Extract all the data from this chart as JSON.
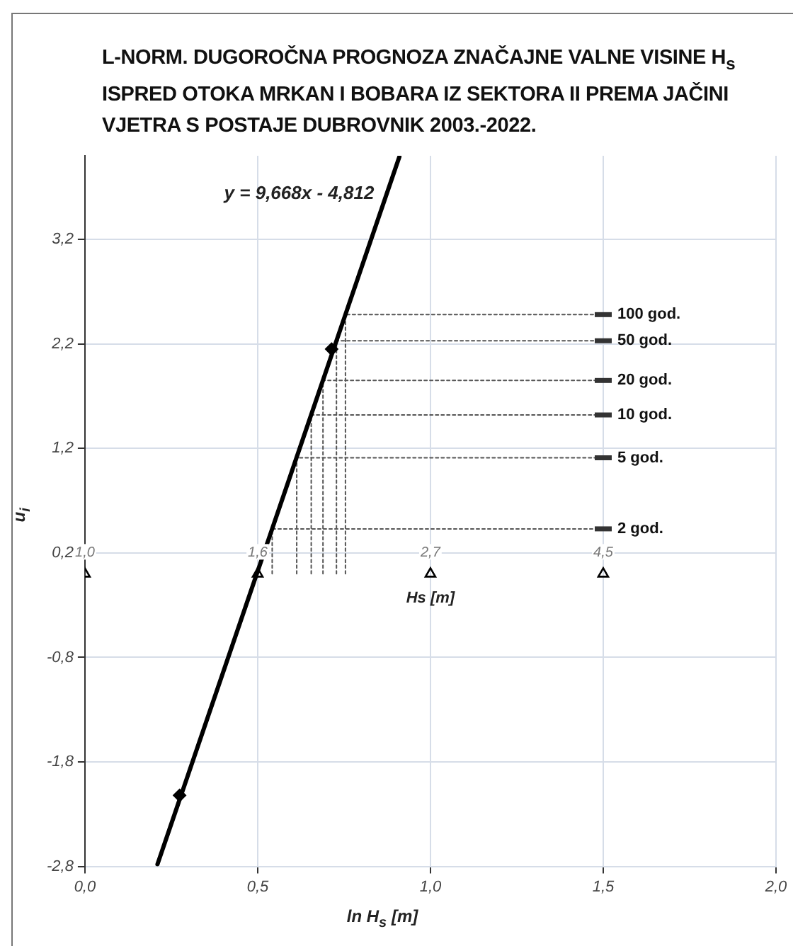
{
  "chart_data": {
    "type": "scatter",
    "title": "L-NORM. DUGOROČNA PROGNOZA ZNAČAJNE VALNE VISINE H$_{s}$ ISPRED OTOKA MRKAN I BOBARA IZ SEKTORA II  PREMA JAČINI VJETRA S POSTAJE DUBROVNIK  2003.-2022.",
    "xlabel": "ln H$_{s}$ [m]",
    "ylabel": "u$_{i}$",
    "x2label": "Hs [m]",
    "xlim": [
      0,
      2.0
    ],
    "ylim": [
      -2.8,
      4.0
    ],
    "x2lim": [
      1.0,
      7.389
    ],
    "log": "x2",
    "xticks": [
      {
        "value": 0,
        "label": "0,0"
      },
      {
        "value": 0.5,
        "label": "0,5"
      },
      {
        "value": 1.0,
        "label": "1,0"
      },
      {
        "value": 1.5,
        "label": "1,5"
      },
      {
        "value": 2.0,
        "label": "2,0"
      }
    ],
    "x2ticks": [
      {
        "value": 1.0,
        "label": "1,0"
      },
      {
        "value": 1.649,
        "label": "1,6"
      },
      {
        "value": 2.718,
        "label": "2,7"
      },
      {
        "value": 4.482,
        "label": "4,5"
      }
    ],
    "yticks": [
      {
        "value": -2.8,
        "label": "-2,8"
      },
      {
        "value": -1.8,
        "label": "-1,8"
      },
      {
        "value": -0.8,
        "label": "-0,8"
      },
      {
        "value": 0.2,
        "label": "0,2"
      },
      {
        "value": 1.2,
        "label": "1,2"
      },
      {
        "value": 2.2,
        "label": "2,2"
      },
      {
        "value": 3.2,
        "label": "3,2"
      }
    ],
    "grid": true,
    "legend": false,
    "annotations": [
      "y = 9,668x - 4,812"
    ],
    "series": [
      {
        "type": "line",
        "color": "#000000",
        "line_style": "solid",
        "x": [
          0.21,
          0.91
        ],
        "values": [
          -2.78,
          3.99
        ]
      },
      {
        "color": "#000000",
        "marker": "diamond",
        "x": [
          0.274,
          0.714
        ],
        "values": [
          -2.12,
          2.15
        ]
      },
      {
        "color": "#000000",
        "marker": "triangle",
        "x": [
          0,
          0.5,
          1.0,
          1.5
        ],
        "values": [
          0,
          0,
          0,
          0
        ]
      },
      {
        "name": "100 god.",
        "type": "line",
        "color": "#555555",
        "line_style": "dotted",
        "x": [
          0.754,
          0.754,
          1.5
        ],
        "values": [
          0,
          2.48,
          2.48
        ]
      },
      {
        "name": "50 god.",
        "type": "line",
        "color": "#555555",
        "line_style": "dotted",
        "x": [
          0.728,
          0.728,
          1.5
        ],
        "values": [
          0,
          2.23,
          2.23
        ]
      },
      {
        "name": "20 god.",
        "type": "line",
        "color": "#555555",
        "line_style": "dotted",
        "x": [
          0.689,
          0.689,
          1.5
        ],
        "values": [
          0,
          1.85,
          1.85
        ]
      },
      {
        "name": "10 god.",
        "type": "line",
        "color": "#555555",
        "line_style": "dotted",
        "x": [
          0.655,
          0.655,
          1.5
        ],
        "values": [
          0,
          1.52,
          1.52
        ]
      },
      {
        "name": "5 god.",
        "type": "line",
        "color": "#555555",
        "line_style": "dotted",
        "x": [
          0.613,
          0.613,
          1.5
        ],
        "values": [
          0,
          1.11,
          1.11
        ]
      },
      {
        "name": "2 god.",
        "type": "line",
        "color": "#555555",
        "line_style": "dotted",
        "x": [
          0.542,
          0.542,
          1.5
        ],
        "values": [
          0,
          0.43,
          0.43
        ]
      }
    ]
  }
}
